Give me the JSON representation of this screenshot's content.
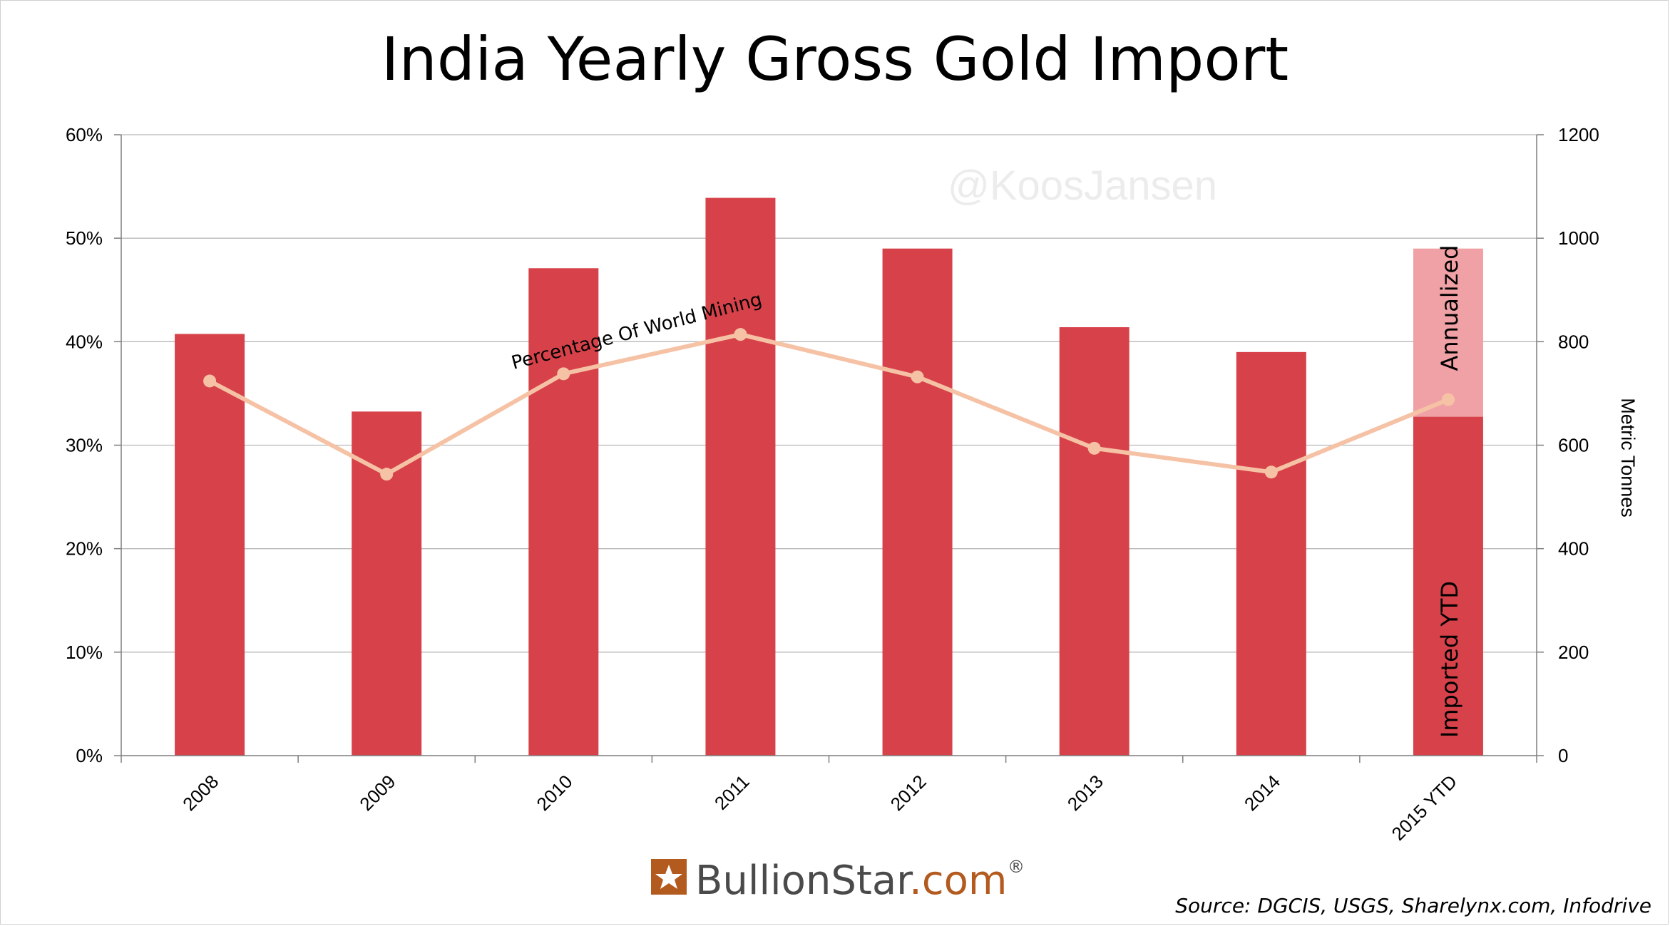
{
  "chart_data": {
    "type": "bar",
    "title": "India Yearly Gross Gold Import",
    "categories": [
      "2008",
      "2009",
      "2010",
      "2011",
      "2012",
      "2013",
      "2014",
      "2015 YTD"
    ],
    "series": [
      {
        "axis": "right",
        "type": "bar",
        "values": [
          815,
          665,
          942,
          1078,
          980,
          828,
          780,
          655
        ],
        "color": "#d7424a"
      },
      {
        "axis": "right",
        "type": "bar",
        "stacked_on_previous": true,
        "values": [
          0,
          0,
          0,
          0,
          0,
          0,
          0,
          325
        ],
        "color": "#f0a1a5"
      },
      {
        "axis": "left",
        "type": "line",
        "name": "Percentage Of World Mining",
        "values": [
          36.2,
          27.2,
          36.9,
          40.7,
          36.6,
          29.7,
          27.4,
          34.4
        ],
        "color": "#f6c2a5"
      }
    ],
    "y_left": {
      "ylim": [
        0,
        60
      ],
      "ticks": [
        "0%",
        "10%",
        "20%",
        "30%",
        "40%",
        "50%",
        "60%"
      ]
    },
    "y_right": {
      "ylim": [
        0,
        1200
      ],
      "ticks": [
        "0",
        "200",
        "400",
        "600",
        "800",
        "1000",
        "1200"
      ],
      "label": "Metric Tonnes"
    },
    "annotations": {
      "annualized": "Annualized",
      "imported_ytd": "Imported YTD"
    },
    "watermark": "@KoosJansen",
    "grid": true
  },
  "footer": {
    "brand_name": "BullionStar",
    "brand_suffix": ".com",
    "brand_mark": "®",
    "source": "Source: DGCIS, USGS, Sharelynx.com, Infodrive"
  }
}
